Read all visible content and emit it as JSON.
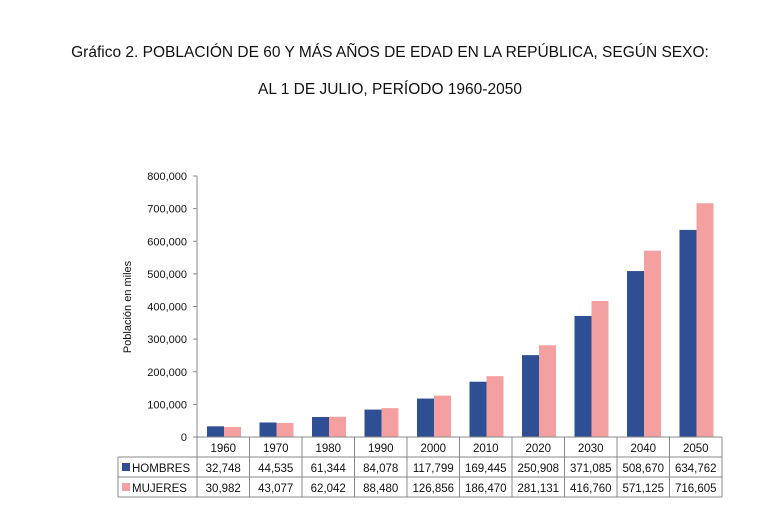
{
  "chart_data": {
    "type": "bar",
    "title_line1": "Gráfico 2. POBLACIÓN DE 60 Y MÁS AÑOS DE EDAD EN LA REPÚBLICA, SEGÚN SEXO:",
    "title_line2": "AL 1 DE JULIO, PERÍODO 1960-2050",
    "ylabel": "Población en miles",
    "ylim": [
      0,
      800000
    ],
    "yticks": [
      "0",
      "100,000",
      "200,000",
      "300,000",
      "400,000",
      "500,000",
      "600,000",
      "700,000",
      "800,000"
    ],
    "categories": [
      "1960",
      "1970",
      "1980",
      "1990",
      "2000",
      "2010",
      "2020",
      "2030",
      "2040",
      "2050"
    ],
    "series": [
      {
        "name": "HOMBRES",
        "color": "#2f4f94",
        "values": [
          32748,
          44535,
          61344,
          84078,
          117799,
          169445,
          250908,
          371085,
          508670,
          634762
        ],
        "labels": [
          "32,748",
          "44,535",
          "61,344",
          "84,078",
          "117,799",
          "169,445",
          "250,908",
          "371,085",
          "508,670",
          "634,762"
        ]
      },
      {
        "name": "MUJERES",
        "color": "#f4a0a0",
        "values": [
          30982,
          43077,
          62042,
          88480,
          126856,
          186470,
          281131,
          416760,
          571125,
          716605
        ],
        "labels": [
          "30,982",
          "43,077",
          "62,042",
          "88,480",
          "126,856",
          "186,470",
          "281,131",
          "416,760",
          "571,125",
          "716,605"
        ]
      }
    ],
    "legend": "data-table",
    "grid": false
  }
}
